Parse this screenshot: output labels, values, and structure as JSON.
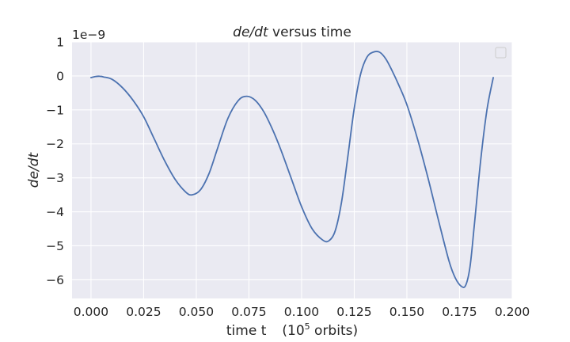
{
  "chart_data": {
    "type": "line",
    "title_parts": {
      "italic": "de/dt",
      "rest": " versus time"
    },
    "xlabel_parts": {
      "main": "time t",
      "paren_open": "(10",
      "sup": "5",
      "paren_close": " orbits)"
    },
    "ylabel": "de/dt",
    "offset_text": "1e−9",
    "xlim": [
      -0.009,
      0.2
    ],
    "ylim": [
      -6.55,
      1.0
    ],
    "x_ticks": [
      0.0,
      0.025,
      0.05,
      0.075,
      0.1,
      0.125,
      0.15,
      0.175,
      0.2
    ],
    "x_tick_labels": [
      "0.000",
      "0.025",
      "0.050",
      "0.075",
      "0.100",
      "0.125",
      "0.150",
      "0.175",
      "0.200"
    ],
    "y_ticks": [
      1,
      0,
      -1,
      -2,
      -3,
      -4,
      -5,
      -6
    ],
    "y_tick_labels": [
      "1",
      "0",
      "−1",
      "−2",
      "−3",
      "−4",
      "−5",
      "−6"
    ],
    "grid": true,
    "legend": "top-right, empty",
    "line_color": "#4c72b0",
    "background_color": "#eaeaf2",
    "grid_color": "#ffffff",
    "series": [
      {
        "x": [
          0.0,
          0.002,
          0.004,
          0.006,
          0.01,
          0.015,
          0.02,
          0.025,
          0.03,
          0.035,
          0.04,
          0.045,
          0.048,
          0.052,
          0.056,
          0.06,
          0.065,
          0.07,
          0.074,
          0.078,
          0.082,
          0.086,
          0.09,
          0.095,
          0.1,
          0.105,
          0.11,
          0.113,
          0.116,
          0.119,
          0.122,
          0.125,
          0.128,
          0.131,
          0.134,
          0.137,
          0.14,
          0.143,
          0.146,
          0.15,
          0.155,
          0.16,
          0.165,
          0.17,
          0.173,
          0.176,
          0.178,
          0.18,
          0.182,
          0.185,
          0.188,
          0.191
        ],
        "y": [
          -0.05,
          -0.02,
          -0.01,
          -0.03,
          -0.1,
          -0.35,
          -0.72,
          -1.2,
          -1.85,
          -2.5,
          -3.05,
          -3.42,
          -3.5,
          -3.35,
          -2.88,
          -2.15,
          -1.25,
          -0.72,
          -0.6,
          -0.72,
          -1.05,
          -1.55,
          -2.15,
          -3.0,
          -3.85,
          -4.5,
          -4.83,
          -4.85,
          -4.55,
          -3.7,
          -2.35,
          -0.95,
          0.05,
          0.55,
          0.7,
          0.7,
          0.5,
          0.15,
          -0.25,
          -0.85,
          -1.85,
          -3.0,
          -4.25,
          -5.45,
          -5.95,
          -6.2,
          -6.15,
          -5.6,
          -4.4,
          -2.5,
          -1.0,
          -0.05
        ]
      }
    ]
  }
}
